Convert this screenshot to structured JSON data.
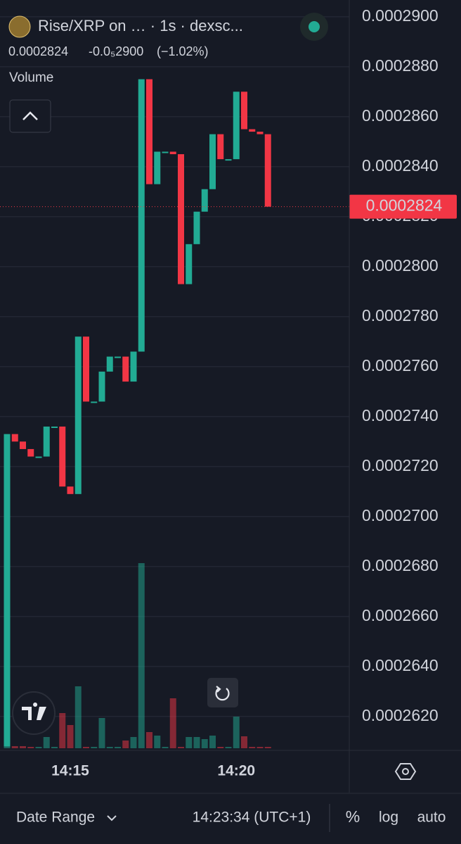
{
  "header": {
    "title": "Rise/XRP on … · 1s · dexsc...",
    "price_change": "-0.0₅2900",
    "percent_change": "(−1.02%)",
    "indicator": "Volume"
  },
  "chart_data": {
    "type": "candlestick",
    "categories": [
      null,
      null,
      null,
      null,
      null,
      null,
      null,
      null,
      "14:15",
      null,
      null,
      null,
      null,
      null,
      null,
      null,
      null,
      null,
      null,
      null,
      null,
      null,
      null,
      null,
      null,
      null,
      null,
      null,
      null,
      "14:20",
      null,
      null,
      null,
      null
    ],
    "open": [
      0.0002608,
      0.0002733,
      0.000273,
      0.0002727,
      0.0002724,
      0.0002724,
      0.0002736,
      0.0002736,
      0.0002712,
      0.0002709,
      0.0002772,
      0.0002746,
      0.0002746,
      0.0002758,
      0.0002764,
      0.0002764,
      0.0002754,
      0.0002766,
      0.0002875,
      0.0002833,
      0.0002846,
      0.0002846,
      0.0002845,
      0.0002793,
      0.0002809,
      0.0002822,
      0.0002831,
      0.0002853,
      0.0002843,
      0.0002843,
      0.000287,
      0.0002855,
      0.0002854,
      0.0002853
    ],
    "close": [
      0.0002733,
      0.000273,
      0.0002727,
      0.0002724,
      0.0002724,
      0.0002736,
      0.0002736,
      0.0002712,
      0.0002709,
      0.0002772,
      0.0002746,
      0.0002746,
      0.0002758,
      0.0002764,
      0.0002764,
      0.0002754,
      0.0002766,
      0.0002875,
      0.0002833,
      0.0002846,
      0.0002846,
      0.0002845,
      0.0002793,
      0.0002809,
      0.0002822,
      0.0002831,
      0.0002853,
      0.0002843,
      0.0002843,
      0.000287,
      0.0002855,
      0.0002854,
      0.0002853,
      0.0002824
    ],
    "volume": [
      83,
      3,
      3,
      2,
      2,
      16,
      2,
      50,
      33,
      88,
      2,
      2,
      43,
      2,
      2,
      11,
      16,
      263,
      23,
      18,
      2,
      71,
      2,
      16,
      16,
      13,
      18,
      2,
      2,
      45,
      17,
      2,
      2,
      2
    ],
    "up_color": "#22ab94",
    "down_color": "#f23645",
    "ylim": [
      0.00026067,
      0.00029067
    ],
    "yticks": [
      {
        "value": 0.000262,
        "label": "0.0002620"
      },
      {
        "value": 0.000264,
        "label": "0.0002640"
      },
      {
        "value": 0.000266,
        "label": "0.0002660"
      },
      {
        "value": 0.000268,
        "label": "0.0002680"
      },
      {
        "value": 0.00027,
        "label": "0.0002700"
      },
      {
        "value": 0.000272,
        "label": "0.0002720"
      },
      {
        "value": 0.000274,
        "label": "0.0002740"
      },
      {
        "value": 0.000276,
        "label": "0.0002760"
      },
      {
        "value": 0.000278,
        "label": "0.0002780"
      },
      {
        "value": 0.00028,
        "label": "0.0002800"
      },
      {
        "value": 0.000282,
        "label": "0.0002820"
      },
      {
        "value": 0.000284,
        "label": "0.0002840"
      },
      {
        "value": 0.000286,
        "label": "0.0002860"
      },
      {
        "value": 0.000288,
        "label": "0.0002880"
      },
      {
        "value": 0.00029,
        "label": "0.0002900"
      }
    ],
    "last_price": 0.0002824,
    "grid": true
  },
  "toolbar": {
    "date_range": "Date Range",
    "time": "14:23:34 (UTC+1)",
    "percent": "%",
    "log": "log",
    "auto": "auto"
  }
}
